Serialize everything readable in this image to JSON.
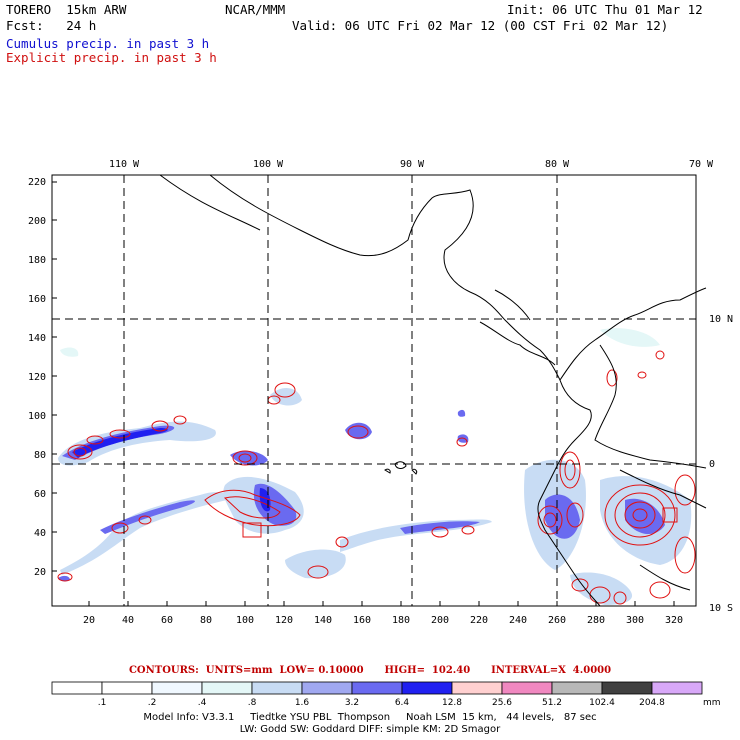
{
  "header": {
    "model": "TORERO  15km ARW",
    "center": "NCAR/MMM",
    "init": "Init: 06 UTC Thu 01 Mar 12",
    "fcst": "Fcst:   24 h",
    "valid": "Valid: 06 UTC Fri 02 Mar 12 (00 CST Fri 02 Mar 12)",
    "line_cumulus": "Cumulus precip. in past 3 h",
    "line_explicit": "Explicit precip. in past 3 h"
  },
  "axes": {
    "lon_labels": [
      "110 W",
      "100 W",
      "90 W",
      "80 W",
      "70 W"
    ],
    "lat_labels": [
      "10 N",
      "0",
      "10 S"
    ],
    "y_ticks": [
      "220",
      "200",
      "180",
      "160",
      "140",
      "120",
      "100",
      "80",
      "60",
      "40",
      "20"
    ],
    "x_ticks": [
      "20",
      "40",
      "60",
      "80",
      "100",
      "120",
      "140",
      "160",
      "180",
      "200",
      "220",
      "240",
      "260",
      "280",
      "300",
      "320"
    ]
  },
  "contours_line": "CONTOURS:  UNITS=mm  LOW= 0.10000      HIGH=  102.40      INTERVAL=X  4.0000",
  "colorbar": {
    "labels": [
      ".1",
      ".2",
      ".4",
      ".8",
      "1.6",
      "3.2",
      "6.4",
      "12.8",
      "25.6",
      "51.2",
      "102.4",
      "204.8"
    ],
    "unit": "mm",
    "colors": [
      "#ffffff",
      "#ffffff",
      "#f0f8ff",
      "#e4f7f7",
      "#c8dcf4",
      "#a0a8f0",
      "#6a6af0",
      "#2020f0",
      "#ffd0d0",
      "#f088c0",
      "#b8b8b8",
      "#404040",
      "#d8a8f8"
    ]
  },
  "model_info_1": "Model Info: V3.3.1     Tiedtke YSU PBL  Thompson     Noah LSM  15 km,   44 levels,   87 sec",
  "model_info_2": "LW: Godd SW: Goddard DIFF: simple KM: 2D Smagor"
}
